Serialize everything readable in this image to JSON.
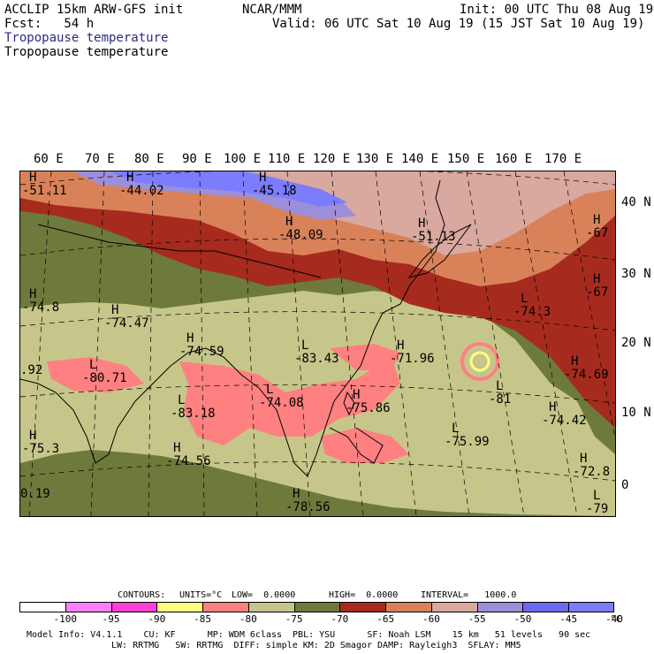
{
  "header": {
    "model": "ACCLIP 15km ARW-GFS init",
    "org": "NCAR/MMM",
    "init": "Init: 00 UTC Thu 08 Aug 19",
    "fcst": "Fcst:   54 h",
    "valid": "Valid: 06 UTC Sat 10 Aug 19 (15 JST Sat 10 Aug 19)",
    "field_title_1": "Tropopause temperature",
    "field_title_2": "Tropopause temperature"
  },
  "lon_labels": [
    "60 E",
    "70 E",
    "80 E",
    "90 E",
    "100 E",
    "110 E",
    "120 E",
    "130 E",
    "140 E",
    "150 E",
    "160 E",
    "170 E"
  ],
  "lat_labels": [
    "40 N",
    "30 N",
    "20 N",
    "10 N",
    "0"
  ],
  "map_labels": [
    {
      "type": "H",
      "value": "-51.11"
    },
    {
      "type": "H",
      "value": "-44.02"
    },
    {
      "type": "H",
      "value": "-45.18"
    },
    {
      "type": "H",
      "value": "-48.09"
    },
    {
      "type": "H",
      "value": "-51.13"
    },
    {
      "type": "H",
      "value": "-67"
    },
    {
      "type": "H",
      "value": "-67"
    },
    {
      "type": "H",
      "value": "-74.8"
    },
    {
      "type": "H",
      "value": "-74.47"
    },
    {
      "type": "H",
      "value": "-74.59"
    },
    {
      "type": "L",
      "value": "-83.43"
    },
    {
      "type": "H",
      "value": "-71.96"
    },
    {
      "type": "L",
      "value": "-74.3"
    },
    {
      "type": "L",
      "value": "-80.71"
    },
    {
      "type": "",
      "value": ".92"
    },
    {
      "type": "H",
      "value": "-74.69"
    },
    {
      "type": "L",
      "value": "-83.18"
    },
    {
      "type": "L",
      "value": "-74.08"
    },
    {
      "type": "H",
      "value": "-75.86"
    },
    {
      "type": "L",
      "value": "-81"
    },
    {
      "type": "H",
      "value": "-74.42"
    },
    {
      "type": "H",
      "value": "-75.3"
    },
    {
      "type": "H",
      "value": "-74.56"
    },
    {
      "type": "L",
      "value": "-75.99"
    },
    {
      "type": "H",
      "value": "-72.8"
    },
    {
      "type": "",
      "value": "0.19"
    },
    {
      "type": "H",
      "value": "-78.56"
    },
    {
      "type": "L",
      "value": "-79"
    }
  ],
  "contour_info": {
    "contours": "CONTOURS:",
    "units": "UNITS=°C",
    "low": "LOW=  0.0000",
    "high": "HIGH=  0.0000",
    "interval": "INTERVAL=   1000.0"
  },
  "colorbar": {
    "colors": [
      "#ffffff",
      "#ff80ff",
      "#ff3fd8",
      "#ffff80",
      "#ff8080",
      "#c6c68a",
      "#6e7a3c",
      "#a62b1e",
      "#d9825a",
      "#d9a89e",
      "#9b8fd9",
      "#6a6aee",
      "#7c7cff"
    ],
    "ticks": [
      "-100",
      "-95",
      "-90",
      "-85",
      "-80",
      "-75",
      "-70",
      "-65",
      "-60",
      "-55",
      "-50",
      "-45",
      "-40"
    ],
    "unit": "°C"
  },
  "model_info": {
    "line1": "Model Info: V4.1.1    CU: KF      MP: WDM 6class  PBL: YSU      SF: Noah LSM    15 km   51 levels   90 sec",
    "line2": "LW: RRTMG   SW: RRTMG  DIFF: simple KM: 2D Smagor DAMP: Rayleigh3  SFLAY: MM5"
  }
}
